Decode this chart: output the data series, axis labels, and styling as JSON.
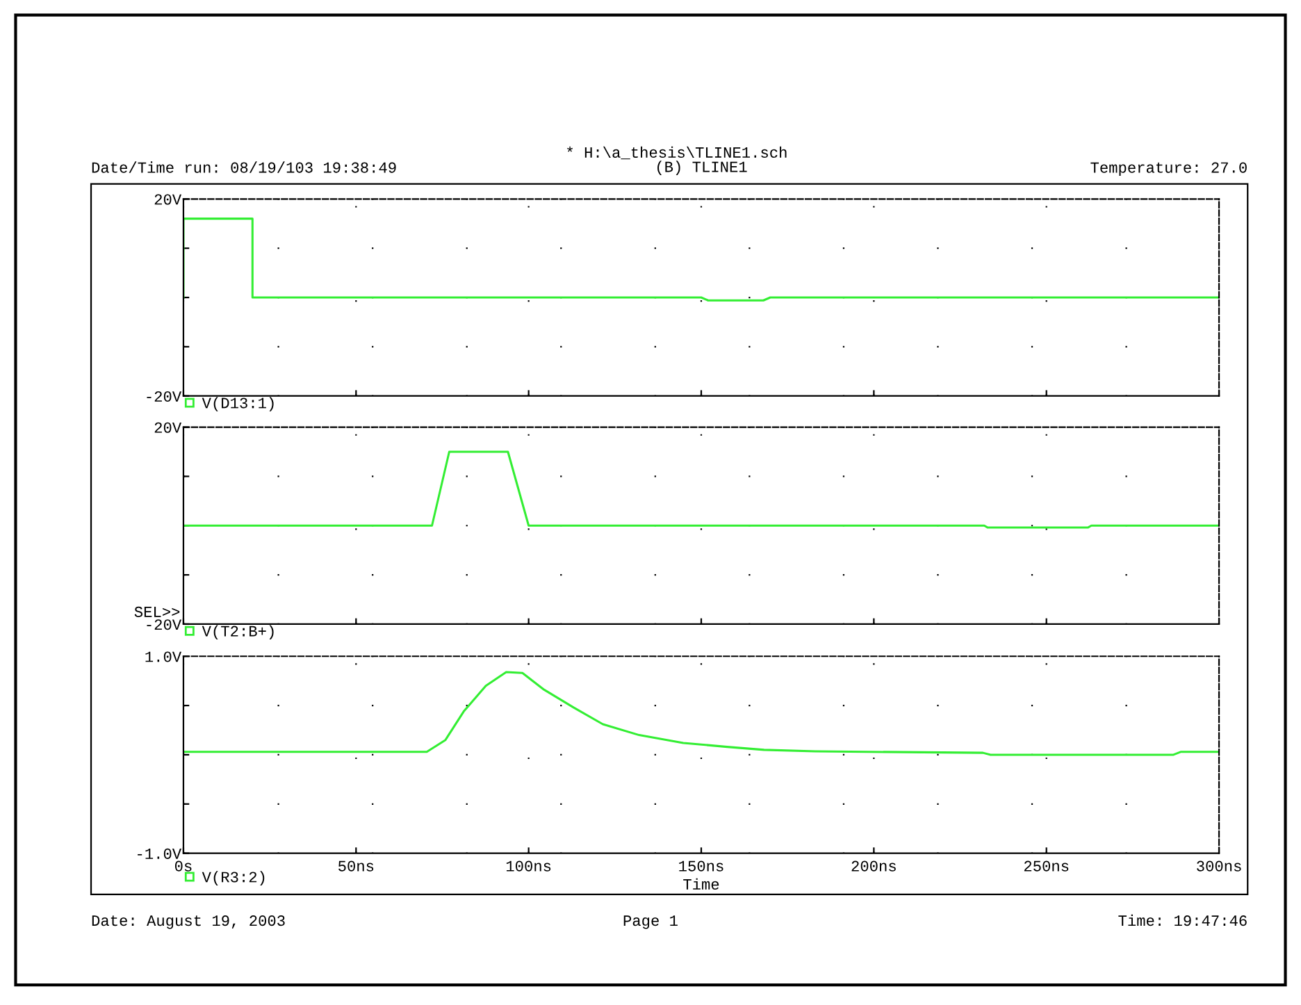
{
  "chart_data": [
    {
      "type": "line",
      "title": "(B) TLINE1",
      "annotations": [
        "* H:\\a_thesis\\TLINE1.sch",
        "Date/Time run: 08/19/103 19:38:49",
        "Temperature: 27.0"
      ],
      "x": [
        0,
        0,
        20,
        20,
        150,
        152,
        168,
        170,
        300
      ],
      "series": [
        {
          "name": "V(D13:1)",
          "color": "#33ee33",
          "values": [
            0,
            16,
            16,
            0,
            0,
            -0.6,
            -0.6,
            0,
            0
          ]
        }
      ],
      "xlim": [
        0,
        300
      ],
      "xticks": [
        0,
        50,
        100,
        150,
        200,
        250,
        300
      ],
      "ylim": [
        -20,
        20
      ],
      "yticks": [
        {
          "value": -20,
          "label": "-20V"
        },
        {
          "value": -10,
          "label": null
        },
        {
          "value": 0,
          "label": null
        },
        {
          "value": 10,
          "label": null
        },
        {
          "value": 20,
          "label": "20V"
        }
      ],
      "tick_labels": "y",
      "grid": true,
      "legend": "bottom left",
      "line_style": "solid",
      "marker": "none"
    },
    {
      "type": "line",
      "annotations": [
        "SEL>>"
      ],
      "x": [
        0,
        72,
        77,
        94,
        100,
        232,
        233,
        262,
        263,
        300
      ],
      "series": [
        {
          "name": "V(T2:B+)",
          "color": "#33ee33",
          "values": [
            0,
            0,
            15,
            15,
            0,
            0,
            -0.4,
            -0.4,
            0,
            0
          ]
        }
      ],
      "xlim": [
        0,
        300
      ],
      "xticks": [
        0,
        50,
        100,
        150,
        200,
        250,
        300
      ],
      "ylim": [
        -20,
        20
      ],
      "yticks": [
        {
          "value": -20,
          "label": "-20V"
        },
        {
          "value": -10,
          "label": null
        },
        {
          "value": 0,
          "label": null
        },
        {
          "value": 10,
          "label": null
        },
        {
          "value": 20,
          "label": "20V"
        }
      ],
      "tick_labels": "y",
      "grid": true,
      "legend": "bottom left",
      "line_style": "solid",
      "marker": "none"
    },
    {
      "type": "line",
      "xlabel": "Time",
      "annotations": [
        "Date: August 19, 2003",
        "Page 1",
        "Time: 19:47:46"
      ],
      "x": [
        0,
        70.5,
        75.9,
        81.2,
        87.6,
        93.5,
        98.2,
        104.5,
        113,
        121.5,
        132,
        144.8,
        157.5,
        168.2,
        183,
        198,
        231.6,
        233.8,
        286.8,
        289,
        300
      ],
      "series": [
        {
          "name": "V(R3:2)",
          "color": "#33ee33",
          "values": [
            0.03,
            0.03,
            0.15,
            0.44,
            0.7,
            0.84,
            0.83,
            0.66,
            0.48,
            0.31,
            0.2,
            0.12,
            0.08,
            0.05,
            0.035,
            0.03,
            0.02,
            0.0,
            0.0,
            0.03,
            0.03
          ]
        }
      ],
      "xlim": [
        0,
        300
      ],
      "xticks": [
        {
          "value": 0,
          "label": "0s"
        },
        {
          "value": 50,
          "label": "50ns"
        },
        {
          "value": 100,
          "label": "100ns"
        },
        {
          "value": 150,
          "label": "150ns"
        },
        {
          "value": 200,
          "label": "200ns"
        },
        {
          "value": 250,
          "label": "250ns"
        },
        {
          "value": 300,
          "label": "300ns"
        }
      ],
      "ylim": [
        -1,
        1
      ],
      "yticks": [
        {
          "value": -1,
          "label": "-1.0V"
        },
        {
          "value": -0.5,
          "label": null
        },
        {
          "value": 0,
          "label": null
        },
        {
          "value": 0.5,
          "label": null
        },
        {
          "value": 1,
          "label": "1.0V"
        }
      ],
      "grid": true,
      "legend": "bottom left",
      "line_style": "solid",
      "marker": "none"
    }
  ]
}
